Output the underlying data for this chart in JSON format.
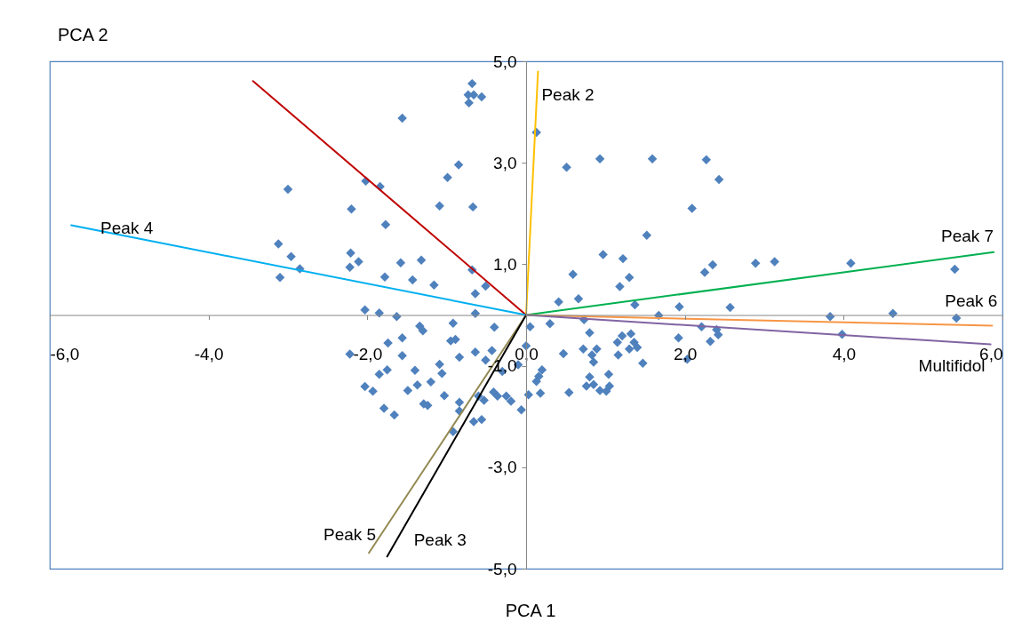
{
  "chart_data": {
    "type": "scatter",
    "xlabel": "PCA 1",
    "ylabel": "PCA 2",
    "xlim": [
      -6,
      6
    ],
    "ylim": [
      -5,
      5
    ],
    "xticks": [
      {
        "value": -6,
        "label": "-6,0"
      },
      {
        "value": -4,
        "label": "-4,0"
      },
      {
        "value": -2,
        "label": "-2,0"
      },
      {
        "value": 0,
        "label": "0,0"
      },
      {
        "value": 2,
        "label": "2,0"
      },
      {
        "value": 4,
        "label": "4,0"
      },
      {
        "value": 6,
        "label": "6,0"
      }
    ],
    "yticks": [
      {
        "value": -5,
        "label": "-5,0"
      },
      {
        "value": -3,
        "label": "-3,0"
      },
      {
        "value": -1,
        "label": "-1,0"
      },
      {
        "value": 1,
        "label": "1,0"
      },
      {
        "value": 3,
        "label": "3,0"
      },
      {
        "value": 5,
        "label": "5,0"
      }
    ],
    "series": [
      {
        "marker": "diamond",
        "color": "#4f81bd",
        "x": [
          -0.68,
          -0.73,
          -0.66,
          -0.56,
          -0.72,
          -1.56,
          -0.85,
          -0.99,
          -2.02,
          -1.84,
          -3.0,
          -1.09,
          -0.67,
          -2.2,
          -1.77,
          -3.12,
          -2.96,
          -2.21,
          -2.11,
          -2.22,
          -1.58,
          -1.32,
          -2.85,
          -3.1,
          -1.78,
          -1.43,
          -1.16,
          -0.68,
          -0.51,
          -0.64,
          -2.03,
          -1.85,
          -1.63,
          -0.64,
          -0.92,
          -0.4,
          -1.34,
          -1.3,
          -1.56,
          -1.74,
          -0.95,
          -0.89,
          -2.22,
          -1.56,
          -0.64,
          -0.43,
          -0.84,
          -0.51,
          -1.09,
          -1.06,
          -1.4,
          -1.75,
          -1.85,
          -1.2,
          -1.37,
          -1.49,
          -2.03,
          -1.93,
          -1.03,
          -0.84,
          -1.29,
          -1.24,
          -0.6,
          -0.53,
          -0.41,
          -0.36,
          -1.79,
          -1.66,
          -0.84,
          -0.66,
          -0.56,
          -0.92,
          0.13,
          0.51,
          0.93,
          1.59,
          2.27,
          2.43,
          2.09,
          1.52,
          0.97,
          1.22,
          2.35,
          0.59,
          1.3,
          1.18,
          2.25,
          0.41,
          0.66,
          1.37,
          1.93,
          2.57,
          1.67,
          0.05,
          0.3,
          0.73,
          2.21,
          2.4,
          0.8,
          1.92,
          2.32,
          2.42,
          1.21,
          1.32,
          1.15,
          1.36,
          1.4,
          1.3,
          0.0,
          0.72,
          0.89,
          0.47,
          1.16,
          0.83,
          0.85,
          1.47,
          2.03,
          -0.3,
          -0.1,
          0.2,
          0.16,
          0.13,
          0.8,
          1.04,
          0.76,
          0.85,
          0.93,
          1.05,
          1.01,
          0.54,
          0.03,
          0.18,
          -0.25,
          -0.19,
          -0.06,
          2.89,
          3.13,
          4.09,
          5.4,
          3.83,
          4.62,
          5.42,
          3.98
        ],
        "values": [
          4.56,
          4.34,
          4.34,
          4.3,
          4.18,
          3.88,
          2.96,
          2.71,
          2.64,
          2.53,
          2.48,
          2.15,
          2.13,
          2.09,
          1.78,
          1.4,
          1.15,
          1.22,
          1.05,
          0.94,
          1.03,
          1.08,
          0.91,
          0.74,
          0.75,
          0.69,
          0.59,
          0.89,
          0.57,
          0.42,
          0.1,
          0.04,
          -0.03,
          0.03,
          -0.16,
          -0.24,
          -0.22,
          -0.31,
          -0.45,
          -0.55,
          -0.51,
          -0.48,
          -0.77,
          -0.8,
          -0.73,
          -0.7,
          -0.83,
          -0.89,
          -0.97,
          -1.15,
          -1.09,
          -1.08,
          -1.17,
          -1.32,
          -1.38,
          -1.49,
          -1.41,
          -1.5,
          -1.59,
          -1.72,
          -1.75,
          -1.78,
          -1.6,
          -1.68,
          -1.52,
          -1.6,
          -1.84,
          -1.97,
          -1.89,
          -2.1,
          -2.06,
          -2.3,
          3.6,
          2.91,
          3.08,
          3.08,
          3.06,
          2.67,
          2.1,
          1.57,
          1.19,
          1.11,
          0.99,
          0.8,
          0.74,
          0.56,
          0.84,
          0.26,
          0.32,
          0.2,
          0.16,
          0.15,
          -0.01,
          -0.23,
          -0.17,
          -0.09,
          -0.23,
          -0.29,
          -0.35,
          -0.45,
          -0.52,
          -0.39,
          -0.41,
          -0.37,
          -0.54,
          -0.54,
          -0.64,
          -0.67,
          -0.61,
          -0.67,
          -0.67,
          -0.76,
          -0.79,
          -0.79,
          -0.93,
          -0.95,
          -0.87,
          -1.11,
          -0.98,
          -1.08,
          -1.21,
          -1.31,
          -1.22,
          -1.17,
          -1.4,
          -1.37,
          -1.49,
          -1.4,
          -1.5,
          -1.53,
          -1.57,
          -1.54,
          -1.6,
          -1.7,
          -1.87,
          1.02,
          1.05,
          1.02,
          0.9,
          -0.03,
          0.03,
          -0.06,
          -0.38
        ]
      },
      {
        "type": "line",
        "color": "#c00000",
        "x": [
          0,
          -3.44
        ],
        "values": [
          0,
          4.61
        ]
      },
      {
        "type": "line",
        "name": "Peak 2",
        "color": "#ffc000",
        "x": [
          0,
          0.15
        ],
        "values": [
          0,
          4.8
        ]
      },
      {
        "type": "line",
        "name": "Peak 4",
        "color": "#00b0f0",
        "x": [
          0,
          -5.73
        ],
        "values": [
          0,
          1.77
        ]
      },
      {
        "type": "line",
        "name": "Peak 7",
        "color": "#00b050",
        "x": [
          0,
          5.89
        ],
        "values": [
          0,
          1.24
        ]
      },
      {
        "type": "line",
        "name": "Peak 6",
        "color": "#f79646",
        "x": [
          0,
          5.87
        ],
        "values": [
          0,
          -0.21
        ]
      },
      {
        "type": "line",
        "name": "Multifidol",
        "color": "#8064a2",
        "x": [
          0,
          5.85
        ],
        "values": [
          0,
          -0.58
        ]
      },
      {
        "type": "line",
        "name": "Peak 5",
        "color": "#948a54",
        "x": [
          0,
          -1.98
        ],
        "values": [
          0,
          -4.69
        ]
      },
      {
        "type": "line",
        "name": "Peak 3",
        "color": "#000000",
        "x": [
          0,
          -1.75
        ],
        "values": [
          0,
          -4.76
        ]
      }
    ]
  }
}
